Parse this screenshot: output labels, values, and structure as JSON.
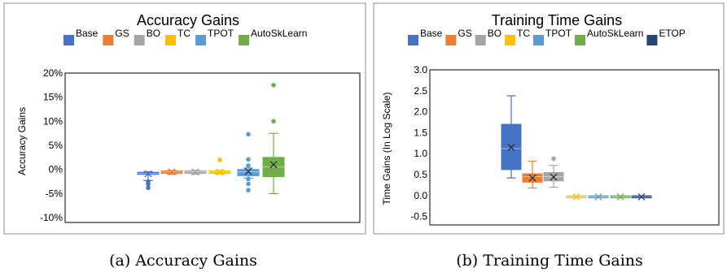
{
  "captions": {
    "a": "(a) Accuracy Gains",
    "b": "(b) Training Time Gains"
  },
  "chart_data": [
    {
      "type": "box",
      "title": "Accuracy Gains",
      "ylabel": "Accuracy Gains",
      "xlabel": "",
      "ylim": [
        -11,
        20
      ],
      "yticks": [
        20,
        15,
        10,
        5,
        0,
        -5,
        -10
      ],
      "ytick_labels": [
        "20%",
        "15%",
        "10%",
        "5%",
        "0%",
        "-5%",
        "-10%"
      ],
      "legend_position": "top",
      "series": [
        {
          "name": "Base",
          "color": "#4472C4",
          "q1": -1.0,
          "median": -0.8,
          "q3": -0.6,
          "mean": -0.9,
          "whisker_low": -2.3,
          "whisker_high": -0.5,
          "outliers": [
            -2.5,
            -3.0,
            -3.8
          ]
        },
        {
          "name": "GS",
          "color": "#ED7D31",
          "q1": -0.8,
          "median": -0.5,
          "q3": -0.3,
          "mean": -0.5,
          "whisker_low": -1.0,
          "whisker_high": -0.2,
          "outliers": []
        },
        {
          "name": "BO",
          "color": "#A5A5A5",
          "q1": -0.8,
          "median": -0.5,
          "q3": -0.3,
          "mean": -0.5,
          "whisker_low": -1.0,
          "whisker_high": -0.2,
          "outliers": []
        },
        {
          "name": "TC",
          "color": "#FFC000",
          "q1": -0.8,
          "median": -0.5,
          "q3": -0.3,
          "mean": -0.5,
          "whisker_low": -1.0,
          "whisker_high": -0.2,
          "outliers": [
            2.0
          ]
        },
        {
          "name": "TPOT",
          "color": "#5B9BD5",
          "q1": -1.3,
          "median": -0.5,
          "q3": 0.0,
          "mean": -0.4,
          "whisker_low": -1.8,
          "whisker_high": 0.3,
          "outliers": [
            7.3,
            2.1,
            0.8,
            -2.0,
            -3.0,
            -4.3
          ]
        },
        {
          "name": "AutoSkLearn",
          "color": "#70AD47",
          "q1": -1.5,
          "median": 0.5,
          "q3": 2.5,
          "mean": 1.0,
          "whisker_low": -5.0,
          "whisker_high": 7.5,
          "outliers": [
            17.5,
            10.0
          ]
        }
      ]
    },
    {
      "type": "box",
      "title": "Training Time Gains",
      "ylabel": "Time Gains (In Log Scale)",
      "xlabel": "",
      "ylim": [
        -0.7,
        3.0
      ],
      "yticks": [
        3.0,
        2.5,
        2.0,
        1.5,
        1.0,
        0.5,
        0.0,
        -0.5
      ],
      "ytick_labels": [
        "3.0",
        "2.5",
        "2.0",
        "1.5",
        "1.0",
        "0.5",
        "0.0",
        "-0.5"
      ],
      "legend_position": "top",
      "series": [
        {
          "name": "Base",
          "color": "#4472C4",
          "q1": 0.62,
          "median": 1.12,
          "q3": 1.7,
          "mean": 1.15,
          "whisker_low": 0.42,
          "whisker_high": 2.38,
          "outliers": []
        },
        {
          "name": "GS",
          "color": "#ED7D31",
          "q1": 0.32,
          "median": 0.45,
          "q3": 0.52,
          "mean": 0.42,
          "whisker_low": 0.18,
          "whisker_high": 0.82,
          "outliers": []
        },
        {
          "name": "BO",
          "color": "#A5A5A5",
          "q1": 0.35,
          "median": 0.45,
          "q3": 0.55,
          "mean": 0.44,
          "whisker_low": 0.2,
          "whisker_high": 0.72,
          "outliers": [
            0.88
          ]
        },
        {
          "name": "TC",
          "color": "#FFC000",
          "q1": -0.03,
          "median": -0.03,
          "q3": -0.03,
          "mean": -0.03,
          "whisker_low": -0.03,
          "whisker_high": -0.03,
          "outliers": []
        },
        {
          "name": "TPOT",
          "color": "#5B9BD5",
          "q1": -0.03,
          "median": -0.03,
          "q3": -0.03,
          "mean": -0.03,
          "whisker_low": -0.03,
          "whisker_high": -0.03,
          "outliers": []
        },
        {
          "name": "AutoSkLearn",
          "color": "#70AD47",
          "q1": -0.03,
          "median": -0.03,
          "q3": -0.03,
          "mean": -0.03,
          "whisker_low": -0.03,
          "whisker_high": -0.03,
          "outliers": []
        },
        {
          "name": "ETOP",
          "color": "#264478",
          "q1": -0.03,
          "median": -0.03,
          "q3": -0.03,
          "mean": -0.03,
          "whisker_low": -0.03,
          "whisker_high": -0.03,
          "outliers": []
        }
      ]
    }
  ]
}
